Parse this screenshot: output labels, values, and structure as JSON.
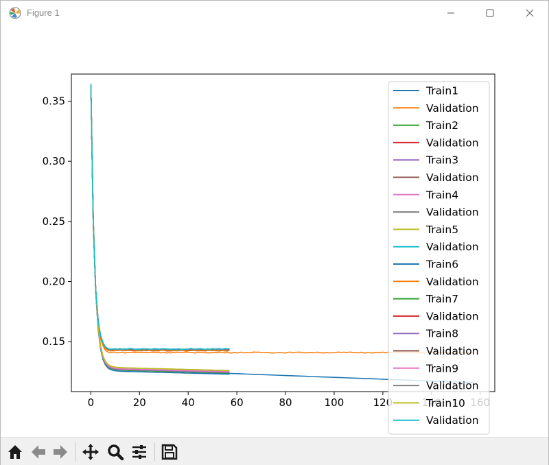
{
  "window": {
    "title": "Figure 1"
  },
  "toolbar": {
    "buttons": [
      "home-icon",
      "back-arrow-icon",
      "forward-arrow-icon",
      "pan-icon",
      "zoom-icon",
      "configure-subplots-icon",
      "save-icon"
    ]
  },
  "chart_data": {
    "type": "line",
    "title": "",
    "xlabel": "",
    "ylabel": "",
    "xlim": [
      -8,
      166
    ],
    "ylim": [
      0.1085,
      0.3725
    ],
    "xticks": [
      0,
      20,
      40,
      60,
      80,
      100,
      120,
      140,
      160
    ],
    "xtick_labels": [
      "0",
      "20",
      "40",
      "60",
      "80",
      "100",
      "120",
      "140",
      "160"
    ],
    "yticks": [
      0.15,
      0.2,
      0.25,
      0.3,
      0.35
    ],
    "ytick_labels": [
      "0.15",
      "0.20",
      "0.25",
      "0.30",
      "0.35"
    ],
    "grid": false,
    "legend_position": "upper-right",
    "series": [
      {
        "name": "Train1",
        "color": "#1f77b4",
        "kind": "train",
        "length": 157,
        "final": 0.116
      },
      {
        "name": "Validation",
        "color": "#ff7f0e",
        "kind": "val",
        "length": 157,
        "final": 0.141
      },
      {
        "name": "Train2",
        "color": "#2ca02c",
        "kind": "train",
        "length": 57,
        "final": 0.124
      },
      {
        "name": "Validation",
        "color": "#d62728",
        "kind": "val",
        "length": 57,
        "final": 0.1435
      },
      {
        "name": "Train3",
        "color": "#9467bd",
        "kind": "train",
        "length": 57,
        "final": 0.125
      },
      {
        "name": "Validation",
        "color": "#8c564b",
        "kind": "val",
        "length": 57,
        "final": 0.143
      },
      {
        "name": "Train4",
        "color": "#e377c2",
        "kind": "train",
        "length": 57,
        "final": 0.125
      },
      {
        "name": "Validation",
        "color": "#7f7f7f",
        "kind": "val",
        "length": 57,
        "final": 0.1435
      },
      {
        "name": "Train5",
        "color": "#bcbd22",
        "kind": "train",
        "length": 57,
        "final": 0.126
      },
      {
        "name": "Validation",
        "color": "#17becf",
        "kind": "val",
        "length": 57,
        "final": 0.1435
      },
      {
        "name": "Train6",
        "color": "#1f77b4",
        "kind": "train",
        "length": 57,
        "final": 0.123
      },
      {
        "name": "Validation",
        "color": "#ff7f0e",
        "kind": "val",
        "length": 57,
        "final": 0.1425
      },
      {
        "name": "Train7",
        "color": "#2ca02c",
        "kind": "train",
        "length": 57,
        "final": 0.124
      },
      {
        "name": "Validation",
        "color": "#d62728",
        "kind": "val",
        "length": 57,
        "final": 0.1435
      },
      {
        "name": "Train8",
        "color": "#9467bd",
        "kind": "train",
        "length": 57,
        "final": 0.1245
      },
      {
        "name": "Validation",
        "color": "#8c564b",
        "kind": "val",
        "length": 57,
        "final": 0.1435
      },
      {
        "name": "Train9",
        "color": "#e377c2",
        "kind": "train",
        "length": 57,
        "final": 0.125
      },
      {
        "name": "Validation",
        "color": "#7f7f7f",
        "kind": "val",
        "length": 57,
        "final": 0.1435
      },
      {
        "name": "Train10",
        "color": "#bcbd22",
        "kind": "train",
        "length": 57,
        "final": 0.126
      },
      {
        "name": "Validation",
        "color": "#17becf",
        "kind": "val",
        "length": 57,
        "final": 0.144
      }
    ]
  }
}
